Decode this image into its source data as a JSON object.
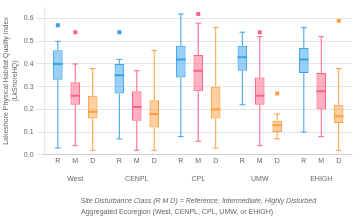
{
  "chart_data": {
    "type": "box",
    "ylabel": "Lakeshore Physical Habitat Quality Index\n(LkShoreHQ)",
    "xlabel": "Site Disturbance Class (R M D) = Reference, Intermediate, Highly Disturbed",
    "annotations": [
      "Aggregated Ecoregion (West, CENPL, CPL, UMW, or EHIGH)"
    ],
    "categories": [
      "R",
      "M",
      "D"
    ],
    "groups": [
      {
        "name": "West",
        "boxes": [
          {
            "q1": 0.33,
            "med": 0.4,
            "q3": 0.46,
            "whislo": 0.03,
            "whishi": 0.5,
            "fliers": [
              0.57
            ]
          },
          {
            "q1": 0.22,
            "med": 0.26,
            "q3": 0.32,
            "whislo": 0.04,
            "whishi": 0.4,
            "fliers": [
              0.54
            ]
          },
          {
            "q1": 0.16,
            "med": 0.19,
            "q3": 0.26,
            "whislo": 0.02,
            "whishi": 0.38,
            "fliers": []
          }
        ]
      },
      {
        "name": "CENPL",
        "boxes": [
          {
            "q1": 0.27,
            "med": 0.35,
            "q3": 0.4,
            "whislo": 0.07,
            "whishi": 0.42,
            "fliers": [
              0.54
            ]
          },
          {
            "q1": 0.15,
            "med": 0.21,
            "q3": 0.28,
            "whislo": 0.02,
            "whishi": 0.37,
            "fliers": []
          },
          {
            "q1": 0.12,
            "med": 0.18,
            "q3": 0.24,
            "whislo": 0.02,
            "whishi": 0.46,
            "fliers": []
          }
        ]
      },
      {
        "name": "CPL",
        "boxes": [
          {
            "q1": 0.34,
            "med": 0.42,
            "q3": 0.48,
            "whislo": 0.08,
            "whishi": 0.62,
            "fliers": []
          },
          {
            "q1": 0.28,
            "med": 0.37,
            "q3": 0.44,
            "whislo": 0.06,
            "whishi": 0.58,
            "fliers": [
              0.62
            ]
          },
          {
            "q1": 0.16,
            "med": 0.2,
            "q3": 0.3,
            "whislo": 0.03,
            "whishi": 0.56,
            "fliers": []
          }
        ]
      },
      {
        "name": "UMW",
        "boxes": [
          {
            "q1": 0.37,
            "med": 0.43,
            "q3": 0.48,
            "whislo": 0.22,
            "whishi": 0.54,
            "fliers": []
          },
          {
            "q1": 0.22,
            "med": 0.26,
            "q3": 0.34,
            "whislo": 0.04,
            "whishi": 0.52,
            "fliers": [
              0.54
            ]
          },
          {
            "q1": 0.1,
            "med": 0.13,
            "q3": 0.15,
            "whislo": 0.07,
            "whishi": 0.18,
            "fliers": [
              0.27
            ]
          }
        ]
      },
      {
        "name": "EHIGH",
        "boxes": [
          {
            "q1": 0.36,
            "med": 0.42,
            "q3": 0.47,
            "whislo": 0.1,
            "whishi": 0.56,
            "fliers": []
          },
          {
            "q1": 0.2,
            "med": 0.28,
            "q3": 0.36,
            "whislo": 0.08,
            "whishi": 0.52,
            "fliers": []
          },
          {
            "q1": 0.14,
            "med": 0.17,
            "q3": 0.22,
            "whislo": 0.02,
            "whishi": 0.38,
            "fliers": [
              0.59
            ]
          }
        ]
      }
    ],
    "ylim": [
      0.0,
      0.65
    ],
    "yticks": [
      {
        "value": 0.0,
        "label": "0.0"
      },
      0.1,
      0.2,
      0.3,
      0.4,
      0.5,
      0.6
    ],
    "grid": true,
    "marker": "square"
  }
}
